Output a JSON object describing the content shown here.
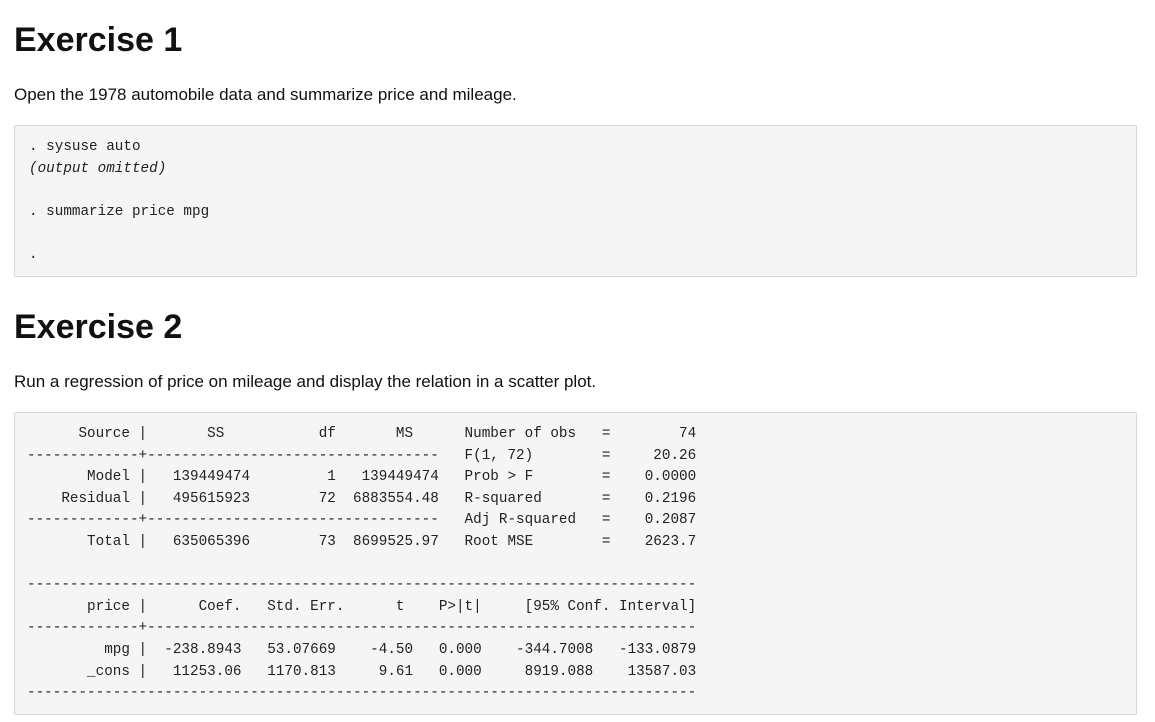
{
  "exercise1": {
    "heading": "Exercise 1",
    "instruction": "Open the 1978 automobile data and summarize price and mileage.",
    "code_lines": [
      ". sysuse auto",
      "(output omitted)",
      "",
      ". summarize price mpg",
      "",
      "."
    ]
  },
  "exercise2": {
    "heading": "Exercise 2",
    "instruction": "Run a regression of price on mileage and display the relation in a scatter plot.",
    "output_lines": [
      "      Source |       SS           df       MS      Number of obs   =        74",
      "-------------+----------------------------------   F(1, 72)        =     20.26",
      "       Model |   139449474         1   139449474   Prob > F        =    0.0000",
      "    Residual |   495615923        72  6883554.48   R-squared       =    0.2196",
      "-------------+----------------------------------   Adj R-squared   =    0.2087",
      "       Total |   635065396        73  8699525.97   Root MSE        =    2623.7",
      "",
      "------------------------------------------------------------------------------",
      "       price |      Coef.   Std. Err.      t    P>|t|     [95% Conf. Interval]",
      "-------------+----------------------------------------------------------------",
      "         mpg |  -238.8943   53.07669    -4.50   0.000    -344.7008   -133.0879",
      "       _cons |   11253.06   1170.813     9.61   0.000     8919.088    13587.03",
      "------------------------------------------------------------------------------"
    ]
  }
}
